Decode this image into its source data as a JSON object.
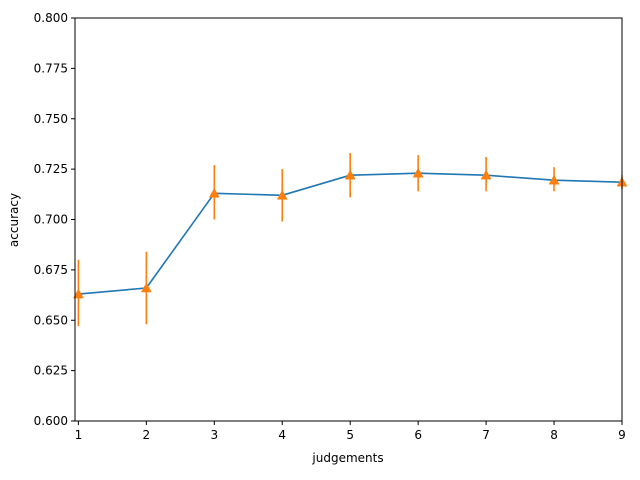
{
  "chart_data": {
    "type": "line",
    "title": "",
    "xlabel": "judgements",
    "ylabel": "accuracy",
    "xlim": [
      0.95,
      9
    ],
    "ylim": [
      0.6,
      0.8
    ],
    "grid": false,
    "legend": "none",
    "x_ticks": [
      1,
      2,
      3,
      4,
      5,
      6,
      7,
      8,
      9
    ],
    "y_ticks": [
      "0.600",
      "0.625",
      "0.650",
      "0.675",
      "0.700",
      "0.725",
      "0.750",
      "0.775",
      "0.800"
    ],
    "series": [
      {
        "kind": "line",
        "color": "#1f77b4",
        "x": [
          1,
          2,
          3,
          4,
          5,
          6,
          7,
          8,
          9
        ],
        "y": [
          0.663,
          0.666,
          0.713,
          0.712,
          0.722,
          0.723,
          0.722,
          0.7195,
          0.7185
        ]
      },
      {
        "kind": "errorbar",
        "marker": "triangle-up",
        "color": "#ff7f0e",
        "x": [
          1,
          2,
          3,
          4,
          5,
          6,
          7,
          8,
          9
        ],
        "y": [
          0.663,
          0.666,
          0.713,
          0.712,
          0.722,
          0.723,
          0.722,
          0.7195,
          0.7185
        ],
        "err_low": [
          0.647,
          0.648,
          0.7,
          0.699,
          0.711,
          0.714,
          0.714,
          0.714,
          0.715
        ],
        "err_high": [
          0.68,
          0.684,
          0.727,
          0.725,
          0.733,
          0.732,
          0.731,
          0.726,
          0.722
        ]
      }
    ]
  }
}
